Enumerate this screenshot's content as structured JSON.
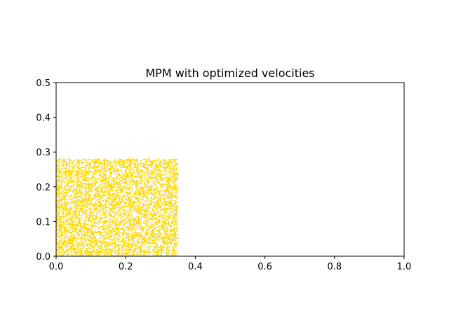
{
  "chart_data": {
    "type": "scatter",
    "title": "MPM with optimized velocities",
    "xlabel": "",
    "ylabel": "",
    "xlim": [
      0,
      1
    ],
    "ylim": [
      0,
      0.5
    ],
    "xticks": [
      0.0,
      0.2,
      0.4,
      0.6,
      0.8,
      1.0
    ],
    "yticks": [
      0.0,
      0.1,
      0.2,
      0.3,
      0.4,
      0.5
    ],
    "xtick_labels": [
      "0.0",
      "0.2",
      "0.4",
      "0.6",
      "0.8",
      "1.0"
    ],
    "ytick_labels": [
      "0.0",
      "0.1",
      "0.2",
      "0.3",
      "0.4",
      "0.5"
    ],
    "grid": false,
    "legend": false,
    "series": [
      {
        "color": "#ffd700",
        "region": {
          "x": [
            0.0,
            0.35
          ],
          "y": [
            0.0,
            0.28
          ]
        }
      }
    ]
  }
}
